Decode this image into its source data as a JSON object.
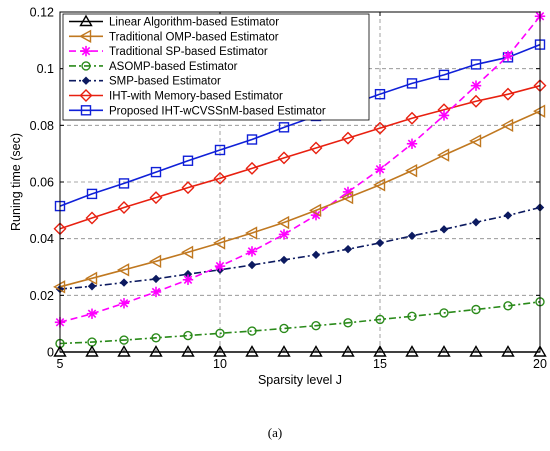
{
  "chart_data": {
    "type": "line",
    "title": "",
    "xlabel": "Sparsity level J",
    "ylabel": "Runing time (sec)",
    "xlim": [
      5,
      20
    ],
    "ylim": [
      0,
      0.12
    ],
    "xticks": [
      5,
      10,
      15,
      20
    ],
    "yticks": [
      0,
      0.02,
      0.04,
      0.06,
      0.08,
      0.1,
      0.12
    ],
    "xtick_labels": [
      "5",
      "10",
      "15",
      "20"
    ],
    "ytick_labels": [
      "0",
      "0.02",
      "0.04",
      "0.06",
      "0.08",
      "0.1",
      "0.12"
    ],
    "grid": true,
    "legend_position": "top-left",
    "x": [
      5,
      6,
      7,
      8,
      9,
      10,
      11,
      12,
      13,
      14,
      15,
      16,
      17,
      18,
      19,
      20
    ],
    "series": [
      {
        "name": "Linear Algorithm-based Estimator",
        "color": "#000000",
        "line": "solid",
        "marker": "triangle-up",
        "values": [
          0,
          0,
          0,
          0,
          0,
          0,
          0,
          0,
          0,
          0,
          0,
          0,
          0,
          0,
          0,
          0
        ]
      },
      {
        "name": "Traditional OMP-based Estimator",
        "color": "#c07820",
        "line": "solid",
        "marker": "triangle-left",
        "values": [
          0.023,
          0.026,
          0.029,
          0.032,
          0.0352,
          0.0385,
          0.042,
          0.0457,
          0.05,
          0.0545,
          0.059,
          0.064,
          0.0695,
          0.0745,
          0.08,
          0.085
        ]
      },
      {
        "name": "Traditional SP-based Estimator",
        "color": "#ff00ff",
        "line": "dashed",
        "marker": "star",
        "values": [
          0.0105,
          0.0135,
          0.0172,
          0.0212,
          0.0255,
          0.0303,
          0.0355,
          0.0415,
          0.0483,
          0.0565,
          0.0645,
          0.0735,
          0.0835,
          0.094,
          0.1045,
          0.1185
        ]
      },
      {
        "name": "ASOMP-based Estimator",
        "color": "#2a8a1a",
        "line": "dashdot",
        "marker": "circle",
        "values": [
          0.003,
          0.0035,
          0.0042,
          0.005,
          0.0058,
          0.0066,
          0.0074,
          0.0083,
          0.0093,
          0.0103,
          0.0115,
          0.0126,
          0.0138,
          0.015,
          0.0163,
          0.0177
        ]
      },
      {
        "name": "SMP-based Estimator",
        "color": "#0c1a60",
        "line": "dashdot",
        "marker": "diamond",
        "values": [
          0.0222,
          0.0232,
          0.0245,
          0.0258,
          0.0275,
          0.029,
          0.0307,
          0.0325,
          0.0343,
          0.0363,
          0.0385,
          0.041,
          0.0433,
          0.0458,
          0.0482,
          0.051
        ]
      },
      {
        "name": "IHT-with Memory-based Estimator",
        "color": "#e82010",
        "line": "solid",
        "marker": "diamond-open",
        "values": [
          0.0435,
          0.0473,
          0.051,
          0.0545,
          0.058,
          0.0613,
          0.0648,
          0.0685,
          0.072,
          0.0755,
          0.079,
          0.0825,
          0.0855,
          0.0885,
          0.091,
          0.094
        ]
      },
      {
        "name": "Proposed IHT-wCVSSnM-based Estimator",
        "color": "#1020d8",
        "line": "solid",
        "marker": "square-open",
        "values": [
          0.0515,
          0.0558,
          0.0595,
          0.0635,
          0.0675,
          0.0713,
          0.075,
          0.0793,
          0.0833,
          0.087,
          0.091,
          0.0948,
          0.0978,
          0.1015,
          0.104,
          0.1085
        ]
      }
    ]
  },
  "caption": "(a)"
}
